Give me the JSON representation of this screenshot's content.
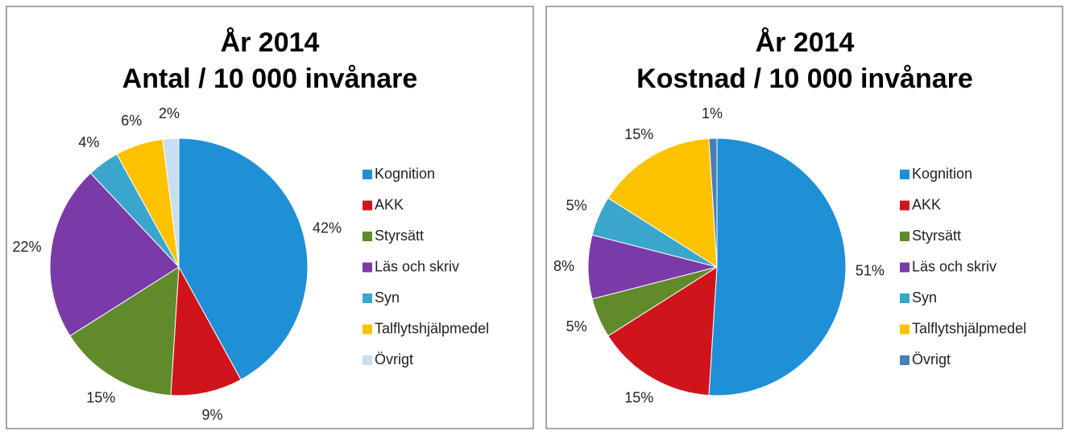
{
  "chart_data": [
    {
      "type": "pie",
      "title": "År 2014",
      "subtitle": "Antal / 10 000 invånare",
      "categories": [
        "Kognition",
        "AKK",
        "Styrsätt",
        "Läs och skriv",
        "Syn",
        "Talflytshjälpmedel",
        "Övrigt"
      ],
      "values": [
        42,
        9,
        15,
        22,
        4,
        6,
        2
      ],
      "value_labels": [
        "42%",
        "9%",
        "15%",
        "22%",
        "4%",
        "6%",
        "2%"
      ],
      "colors": [
        "#1f8fd6",
        "#d0141c",
        "#5f8b2a",
        "#7a3aa8",
        "#3aa6cc",
        "#fcc200",
        "#c7dff0"
      ]
    },
    {
      "type": "pie",
      "title": "År 2014",
      "subtitle": "Kostnad / 10 000  invånare",
      "categories": [
        "Kognition",
        "AKK",
        "Styrsätt",
        "Läs och skriv",
        "Syn",
        "Talflytshjälpmedel",
        "Övrigt"
      ],
      "values": [
        51,
        15,
        5,
        8,
        5,
        15,
        1
      ],
      "value_labels": [
        "51%",
        "15%",
        "5%",
        "8%",
        "5%",
        "15%",
        "1%"
      ],
      "colors": [
        "#1f8fd6",
        "#d0141c",
        "#5f8b2a",
        "#7a3aa8",
        "#3aa6cc",
        "#fcc200",
        "#4a7fb5"
      ]
    }
  ]
}
